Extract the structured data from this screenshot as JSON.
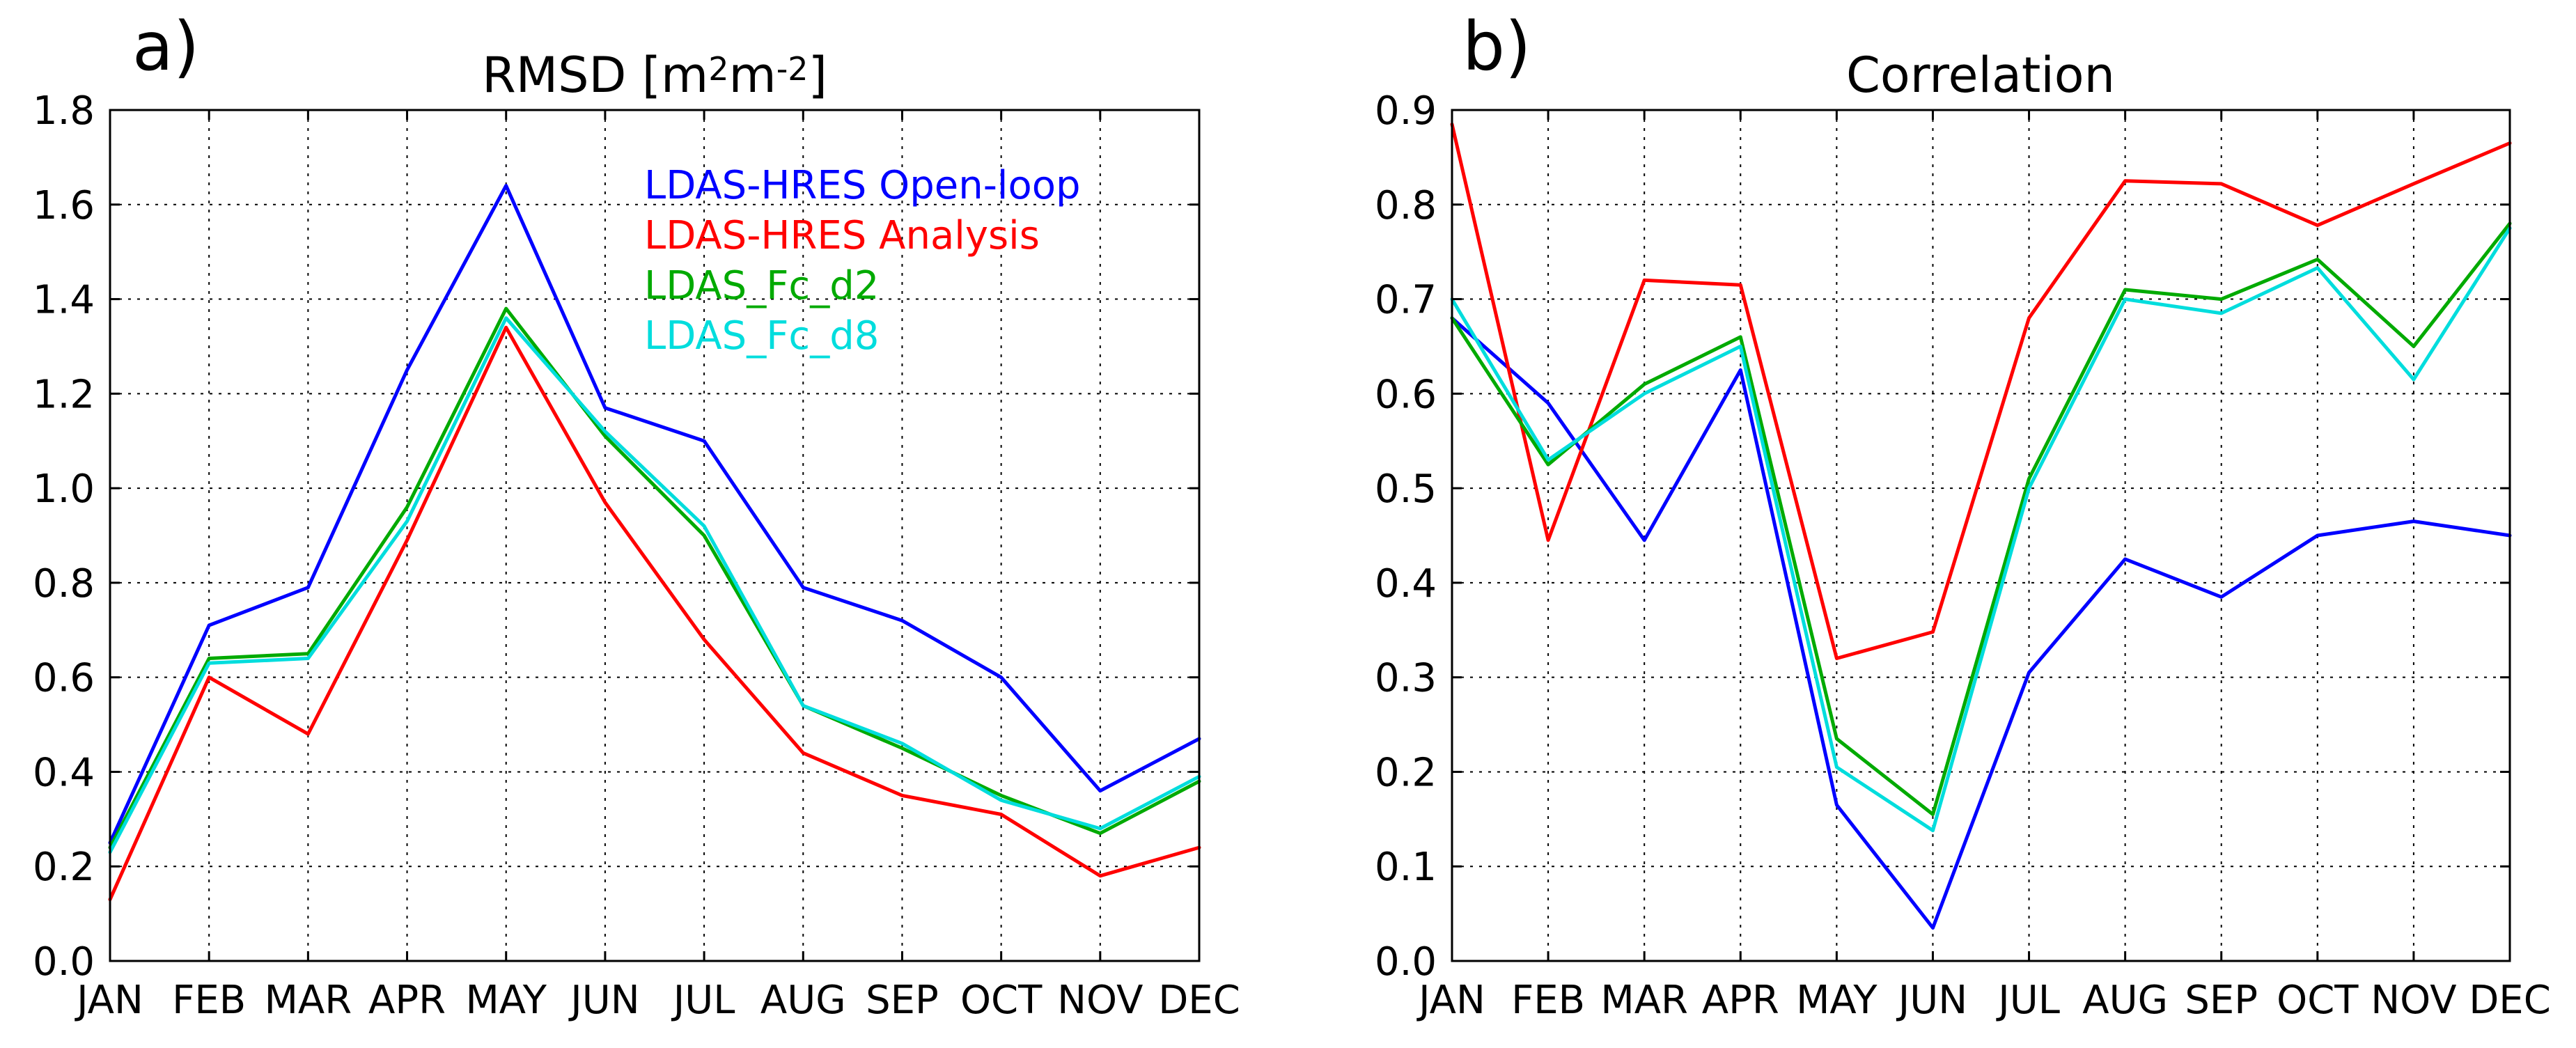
{
  "chart_data": [
    {
      "type": "line",
      "panel_label": "a)",
      "title_parts": [
        "RMSD [m",
        "2",
        "m",
        "-2",
        "]"
      ],
      "categories": [
        "JAN",
        "FEB",
        "MAR",
        "APR",
        "MAY",
        "JUN",
        "JUL",
        "AUG",
        "SEP",
        "OCT",
        "NOV",
        "DEC"
      ],
      "ylim": [
        0.0,
        1.8
      ],
      "yticks": [
        "0.0",
        "0.2",
        "0.4",
        "0.6",
        "0.8",
        "1.0",
        "1.2",
        "1.4",
        "1.6",
        "1.8"
      ],
      "grid": true,
      "legend_position": "top-right",
      "series": [
        {
          "name": "LDAS-HRES Open-loop",
          "color": "#0000ff",
          "values": [
            0.25,
            0.71,
            0.79,
            1.25,
            1.64,
            1.17,
            1.1,
            0.79,
            0.72,
            0.6,
            0.36,
            0.47
          ]
        },
        {
          "name": "LDAS-HRES Analysis",
          "color": "#ff0000",
          "values": [
            0.13,
            0.6,
            0.48,
            0.89,
            1.34,
            0.97,
            0.68,
            0.44,
            0.35,
            0.31,
            0.18,
            0.24
          ]
        },
        {
          "name": "LDAS_Fc_d2",
          "color": "#00aa00",
          "values": [
            0.24,
            0.64,
            0.65,
            0.96,
            1.38,
            1.11,
            0.9,
            0.54,
            0.45,
            0.35,
            0.27,
            0.38
          ]
        },
        {
          "name": "LDAS_Fc_d8",
          "color": "#00dddd",
          "values": [
            0.23,
            0.63,
            0.64,
            0.93,
            1.36,
            1.12,
            0.92,
            0.54,
            0.46,
            0.34,
            0.28,
            0.39
          ]
        }
      ]
    },
    {
      "type": "line",
      "panel_label": "b)",
      "title_parts": [
        "Correlation"
      ],
      "categories": [
        "JAN",
        "FEB",
        "MAR",
        "APR",
        "MAY",
        "JUN",
        "JUL",
        "AUG",
        "SEP",
        "OCT",
        "NOV",
        "DEC"
      ],
      "ylim": [
        0.0,
        0.9
      ],
      "yticks": [
        "0.0",
        "0.1",
        "0.2",
        "0.3",
        "0.4",
        "0.5",
        "0.6",
        "0.7",
        "0.8",
        "0.9"
      ],
      "grid": true,
      "legend_position": "none",
      "series": [
        {
          "name": "LDAS-HRES Open-loop",
          "color": "#0000ff",
          "values": [
            0.68,
            0.59,
            0.445,
            0.625,
            0.165,
            0.035,
            0.305,
            0.425,
            0.385,
            0.45,
            0.465,
            0.45
          ]
        },
        {
          "name": "LDAS-HRES Analysis",
          "color": "#ff0000",
          "values": [
            0.885,
            0.445,
            0.72,
            0.715,
            0.32,
            0.348,
            0.68,
            0.825,
            0.822,
            0.778,
            0.822,
            0.865
          ]
        },
        {
          "name": "LDAS_Fc_d2",
          "color": "#00aa00",
          "values": [
            0.68,
            0.525,
            0.61,
            0.66,
            0.235,
            0.155,
            0.51,
            0.71,
            0.7,
            0.742,
            0.65,
            0.78
          ]
        },
        {
          "name": "LDAS_Fc_d8",
          "color": "#00dddd",
          "values": [
            0.7,
            0.53,
            0.6,
            0.65,
            0.205,
            0.138,
            0.5,
            0.7,
            0.685,
            0.733,
            0.615,
            0.775
          ]
        }
      ]
    }
  ]
}
